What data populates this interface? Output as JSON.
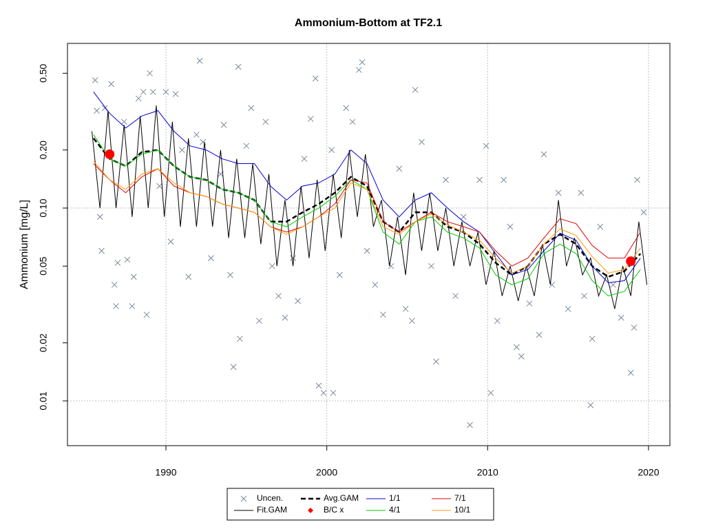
{
  "chart_data": {
    "type": "line",
    "title": "Ammonium-Bottom at TF2.1",
    "y_label": "Ammonium [mg/L]",
    "ylog": true,
    "xlim": [
      1983.88,
      2021.33
    ],
    "ylim": [
      0.00586,
      0.714
    ],
    "xticks": [
      1990,
      2000,
      2010,
      2020
    ],
    "yticks": [
      0.01,
      0.02,
      0.05,
      {
        "value": 0.1,
        "label": "0.10"
      },
      {
        "value": 0.2,
        "label": "0.20"
      },
      {
        "value": 0.5,
        "label": "0.50"
      }
    ],
    "x_grid_lines": [
      1990,
      2000,
      2010,
      2020
    ],
    "y_grid_lines": [
      0.01,
      0.1
    ],
    "grid_color": "#bebebe",
    "x": [
      1985.5,
      1986.5,
      1987.5,
      1988.5,
      1989.5,
      1990.5,
      1991.5,
      1992.5,
      1993.5,
      1994.5,
      1995.5,
      1996.5,
      1997.5,
      1998.5,
      1999.5,
      2000.5,
      2001.5,
      2002.5,
      2003.5,
      2004.5,
      2005.5,
      2006.5,
      2007.5,
      2008.5,
      2009.5,
      2010.5,
      2011.5,
      2012.5,
      2013.5,
      2014.5,
      2015.5,
      2016.5,
      2017.5,
      2018.5,
      2019.5
    ],
    "series": [
      {
        "name": "Uncen.",
        "type": "scatter",
        "color": "#7a869c",
        "x": [
          1985.6,
          1985.7,
          1985.9,
          1986.0,
          1986.2,
          1986.6,
          1986.8,
          1986.9,
          1987.0,
          1987.4,
          1987.6,
          1987.9,
          1988.0,
          1988.3,
          1988.6,
          1988.8,
          1989.0,
          1989.2,
          1989.6,
          1990.0,
          1990.3,
          1990.6,
          1991.0,
          1991.4,
          1991.9,
          1992.1,
          1992.3,
          1992.8,
          1993.4,
          1993.6,
          1994.0,
          1994.2,
          1994.5,
          1994.6,
          1995.0,
          1995.3,
          1995.8,
          1996.2,
          1996.6,
          1997.0,
          1997.4,
          1997.9,
          1998.2,
          1998.6,
          1999.0,
          1999.3,
          1999.5,
          1999.8,
          2000.3,
          2000.4,
          2000.8,
          2001.2,
          2001.6,
          2002.0,
          2002.2,
          2002.5,
          2003.0,
          2003.5,
          2004.0,
          2004.5,
          2004.9,
          2005.3,
          2005.5,
          2005.9,
          2006.5,
          2006.8,
          2007.4,
          2008.0,
          2008.5,
          2008.9,
          2009.5,
          2009.9,
          2010.2,
          2010.6,
          2011.0,
          2011.4,
          2011.8,
          2012.1,
          2012.6,
          2013.2,
          2013.5,
          2014.0,
          2014.4,
          2015.0,
          2015.8,
          2016.0,
          2016.4,
          2016.5,
          2017.0,
          2017.8,
          2018.3,
          2018.9,
          2019.1,
          2019.3,
          2019.7
        ],
        "values": [
          0.46,
          0.32,
          0.09,
          0.06,
          0.33,
          0.44,
          0.04,
          0.031,
          0.052,
          0.28,
          0.054,
          0.031,
          0.044,
          0.37,
          0.4,
          0.028,
          0.5,
          0.4,
          0.13,
          0.4,
          0.067,
          0.39,
          0.2,
          0.044,
          0.24,
          0.58,
          0.22,
          0.055,
          0.15,
          0.27,
          0.045,
          0.015,
          0.54,
          0.021,
          0.21,
          0.33,
          0.026,
          0.28,
          0.05,
          0.035,
          0.027,
          0.055,
          0.033,
          0.18,
          0.29,
          0.47,
          0.012,
          0.011,
          0.2,
          0.011,
          0.045,
          0.33,
          0.28,
          0.52,
          0.57,
          0.06,
          0.04,
          0.028,
          0.05,
          0.16,
          0.03,
          0.026,
          0.41,
          0.22,
          0.05,
          0.016,
          0.14,
          0.035,
          0.09,
          0.0075,
          0.14,
          0.21,
          0.011,
          0.026,
          0.14,
          0.08,
          0.019,
          0.017,
          0.032,
          0.022,
          0.19,
          0.04,
          0.12,
          0.03,
          0.12,
          0.035,
          0.0095,
          0.021,
          0.08,
          0.04,
          0.027,
          0.014,
          0.024,
          0.14,
          0.095
        ]
      },
      {
        "name": "Fit.GAM",
        "type": "line",
        "color": "#000000",
        "line_width": 1,
        "x": [
          1985.4,
          1985.9,
          1986.4,
          1986.9,
          1987.4,
          1987.9,
          1988.4,
          1988.9,
          1989.4,
          1989.9,
          1990.4,
          1990.9,
          1991.4,
          1991.9,
          1992.4,
          1992.9,
          1993.4,
          1993.9,
          1994.4,
          1994.9,
          1995.4,
          1995.9,
          1996.4,
          1996.9,
          1997.4,
          1997.9,
          1998.4,
          1998.9,
          1999.4,
          1999.9,
          2000.4,
          2000.9,
          2001.4,
          2001.9,
          2002.4,
          2002.9,
          2003.4,
          2003.9,
          2004.4,
          2004.9,
          2005.4,
          2005.9,
          2006.4,
          2006.9,
          2007.4,
          2007.9,
          2008.4,
          2008.9,
          2009.4,
          2009.9,
          2010.4,
          2010.9,
          2011.4,
          2011.9,
          2012.4,
          2012.9,
          2013.4,
          2013.9,
          2014.4,
          2014.9,
          2015.4,
          2015.9,
          2016.4,
          2016.9,
          2017.4,
          2017.9,
          2018.4,
          2018.9,
          2019.4,
          2019.9
        ],
        "values": [
          0.25,
          0.1,
          0.32,
          0.1,
          0.27,
          0.09,
          0.3,
          0.1,
          0.34,
          0.09,
          0.28,
          0.08,
          0.23,
          0.08,
          0.22,
          0.08,
          0.2,
          0.07,
          0.18,
          0.07,
          0.17,
          0.065,
          0.15,
          0.05,
          0.11,
          0.05,
          0.13,
          0.055,
          0.14,
          0.06,
          0.15,
          0.07,
          0.2,
          0.09,
          0.19,
          0.08,
          0.11,
          0.05,
          0.09,
          0.045,
          0.12,
          0.06,
          0.12,
          0.06,
          0.1,
          0.05,
          0.085,
          0.05,
          0.075,
          0.04,
          0.06,
          0.035,
          0.05,
          0.033,
          0.05,
          0.035,
          0.065,
          0.04,
          0.11,
          0.05,
          0.07,
          0.045,
          0.055,
          0.035,
          0.045,
          0.03,
          0.05,
          0.035,
          0.085,
          0.04
        ]
      },
      {
        "name": "Avg.GAM",
        "type": "line",
        "color": "#000000",
        "line_width": 2.5,
        "dash": "7 4",
        "values": [
          0.23,
          0.18,
          0.165,
          0.195,
          0.2,
          0.165,
          0.145,
          0.14,
          0.125,
          0.12,
          0.11,
          0.085,
          0.085,
          0.095,
          0.105,
          0.12,
          0.145,
          0.13,
          0.085,
          0.075,
          0.095,
          0.095,
          0.08,
          0.075,
          0.065,
          0.052,
          0.045,
          0.05,
          0.065,
          0.073,
          0.065,
          0.05,
          0.044,
          0.047,
          0.058
        ]
      },
      {
        "name": "B/C x",
        "type": "point",
        "color": "#ff0000",
        "x": [
          1986.5,
          2018.9
        ],
        "values": [
          0.19,
          0.053
        ]
      },
      {
        "name": "1/1",
        "type": "line",
        "color": "#0000cd",
        "line_width": 1,
        "values": [
          0.4,
          0.31,
          0.26,
          0.3,
          0.32,
          0.25,
          0.21,
          0.2,
          0.18,
          0.17,
          0.17,
          0.13,
          0.11,
          0.13,
          0.135,
          0.15,
          0.2,
          0.17,
          0.11,
          0.09,
          0.11,
          0.12,
          0.1,
          0.085,
          0.075,
          0.058,
          0.045,
          0.048,
          0.06,
          0.074,
          0.068,
          0.05,
          0.041,
          0.042,
          0.055
        ]
      },
      {
        "name": "4/1",
        "type": "line",
        "color": "#00cd00",
        "line_width": 1,
        "values": [
          0.24,
          0.18,
          0.165,
          0.19,
          0.2,
          0.165,
          0.145,
          0.14,
          0.125,
          0.12,
          0.11,
          0.085,
          0.08,
          0.09,
          0.1,
          0.115,
          0.14,
          0.125,
          0.075,
          0.065,
          0.085,
          0.09,
          0.075,
          0.07,
          0.062,
          0.045,
          0.04,
          0.043,
          0.058,
          0.065,
          0.058,
          0.042,
          0.035,
          0.037,
          0.048
        ]
      },
      {
        "name": "7/1",
        "type": "line",
        "color": "#dd0000",
        "line_width": 1,
        "values": [
          0.17,
          0.14,
          0.12,
          0.145,
          0.16,
          0.13,
          0.12,
          0.115,
          0.105,
          0.1,
          0.095,
          0.08,
          0.075,
          0.08,
          0.09,
          0.105,
          0.14,
          0.135,
          0.085,
          0.075,
          0.085,
          0.095,
          0.085,
          0.08,
          0.075,
          0.06,
          0.05,
          0.055,
          0.07,
          0.088,
          0.083,
          0.064,
          0.055,
          0.055,
          0.075
        ]
      },
      {
        "name": "10/1",
        "type": "line",
        "color": "#ff9900",
        "line_width": 1,
        "values": [
          0.175,
          0.14,
          0.125,
          0.15,
          0.16,
          0.135,
          0.12,
          0.115,
          0.105,
          0.1,
          0.095,
          0.08,
          0.073,
          0.08,
          0.09,
          0.1,
          0.135,
          0.125,
          0.08,
          0.073,
          0.085,
          0.093,
          0.082,
          0.075,
          0.068,
          0.055,
          0.046,
          0.05,
          0.065,
          0.078,
          0.072,
          0.056,
          0.046,
          0.048,
          0.062
        ]
      }
    ]
  }
}
